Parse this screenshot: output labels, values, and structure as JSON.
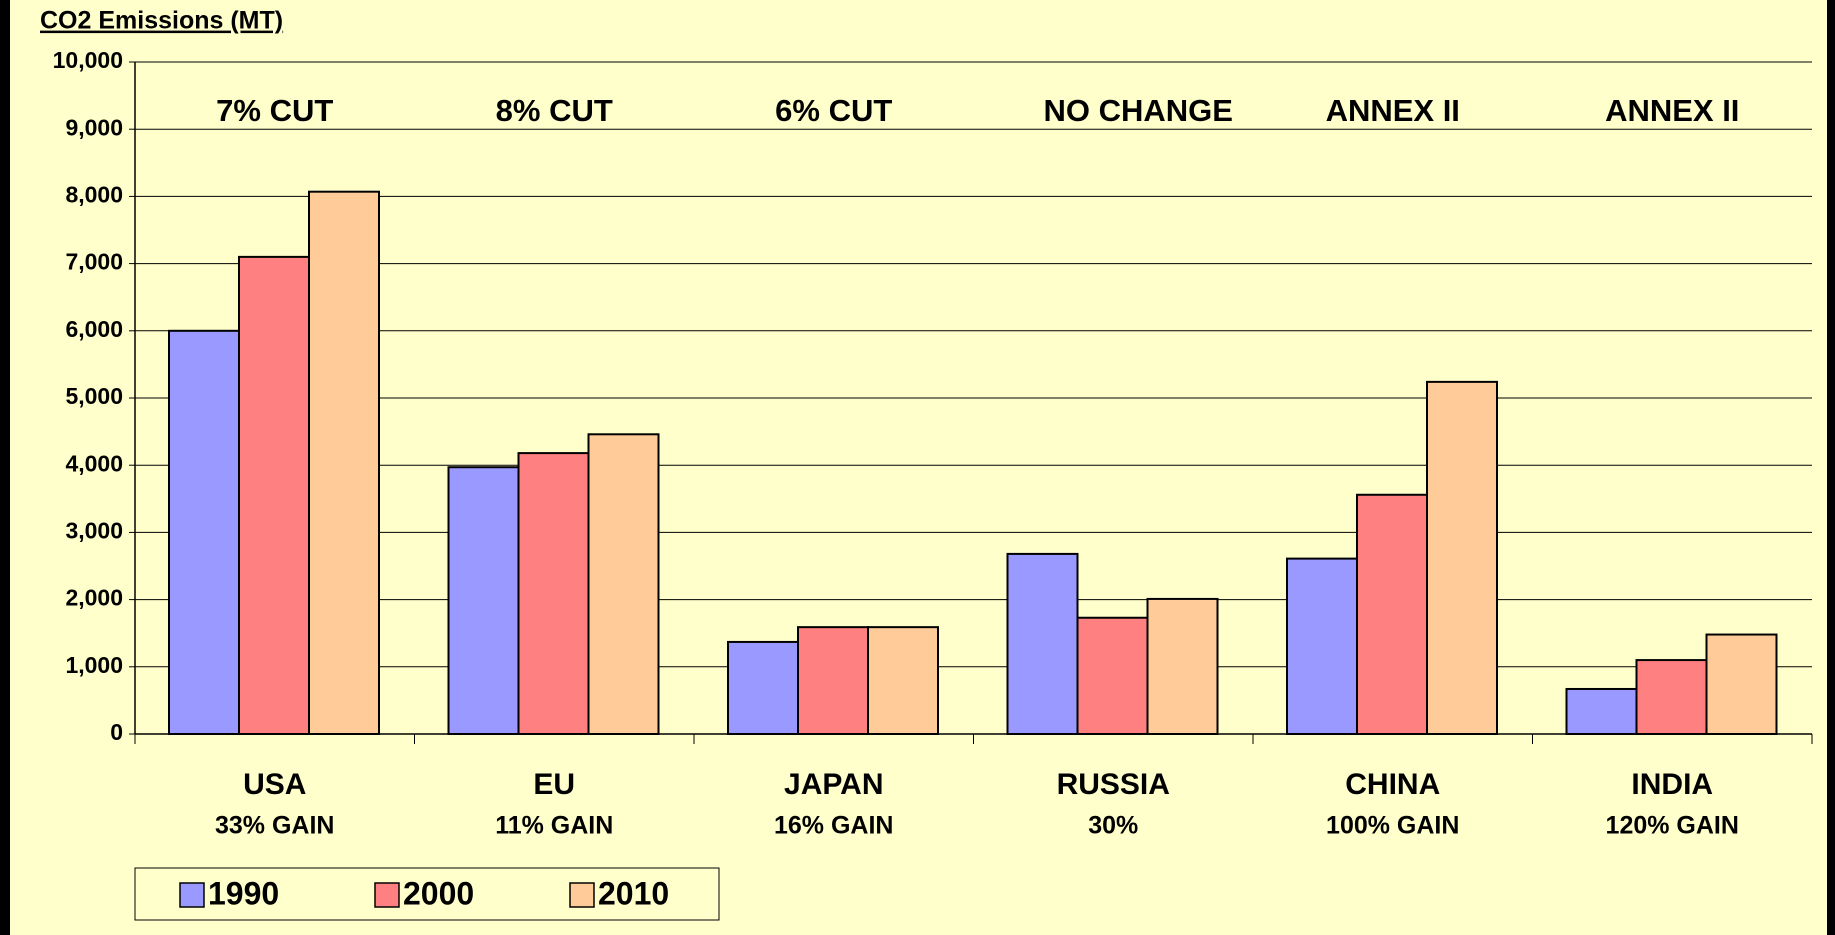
{
  "chart_data": {
    "type": "bar",
    "title": "CO2 Emissions (MT)",
    "categories": [
      "USA",
      "EU",
      "JAPAN",
      "RUSSIA",
      "CHINA",
      "INDIA"
    ],
    "top_labels": [
      "7% CUT",
      "8% CUT",
      "6% CUT",
      "NO CHANGE",
      "ANNEX II",
      "ANNEX II"
    ],
    "bottom_labels": [
      "33% GAIN",
      "11% GAIN",
      "16% GAIN",
      "30%",
      "100% GAIN",
      "120% GAIN"
    ],
    "series": [
      {
        "name": "1990",
        "color": "#9999ff",
        "values": [
          6000,
          3970,
          1370,
          2680,
          2610,
          670
        ]
      },
      {
        "name": "2000",
        "color": "#ff8080",
        "values": [
          7100,
          4180,
          1590,
          1730,
          3560,
          1100
        ]
      },
      {
        "name": "2010",
        "color": "#ffcc99",
        "values": [
          8070,
          4460,
          1590,
          2010,
          5240,
          1480
        ]
      }
    ],
    "ylim": [
      0,
      10000
    ],
    "yticks": [
      0,
      {
        "value": 1000,
        "label": "1,000"
      },
      {
        "value": 2000,
        "label": "2,000"
      },
      {
        "value": 3000,
        "label": "3,000"
      },
      {
        "value": 4000,
        "label": "4,000"
      },
      {
        "value": 5000,
        "label": "5,000"
      },
      {
        "value": 6000,
        "label": "6,000"
      },
      {
        "value": 7000,
        "label": "7,000"
      },
      {
        "value": 8000,
        "label": "8,000"
      },
      {
        "value": 9000,
        "label": "9,000"
      },
      {
        "value": 10000,
        "label": "10,000"
      }
    ],
    "grid": true,
    "legend": "bottom-left"
  }
}
